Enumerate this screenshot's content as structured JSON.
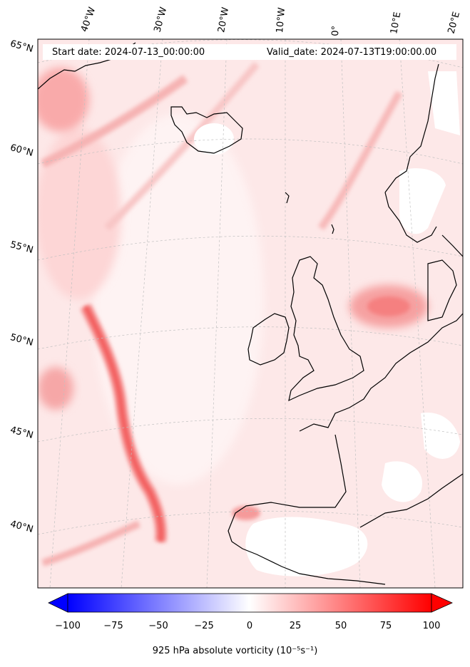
{
  "header": {
    "start_date": "Start date: 2024-07-13_00:00:00",
    "valid_date": "Valid_date: 2024-07-13T19:00:00.00"
  },
  "longitude_labels": [
    "40°W",
    "30°W",
    "20°W",
    "10°W",
    "0°",
    "10°E",
    "20°E"
  ],
  "latitude_labels": [
    "65°N",
    "60°N",
    "55°N",
    "50°N",
    "45°N",
    "40°N"
  ],
  "colorbar": {
    "ticks": [
      "−100",
      "−75",
      "−50",
      "−25",
      "0",
      "25",
      "50",
      "75",
      "100"
    ],
    "min": -100,
    "max": 100,
    "label": "925 hPa absolute vorticity (10⁻⁵s⁻¹)",
    "colors": {
      "negative": "#0000ff",
      "zero": "#ffffff",
      "positive": "#ff0000"
    }
  },
  "colors": {
    "background_field": "#fde4e4",
    "coastline": "#000000",
    "gridline": "#b0b0b0",
    "land_low": "#ffffff"
  }
}
